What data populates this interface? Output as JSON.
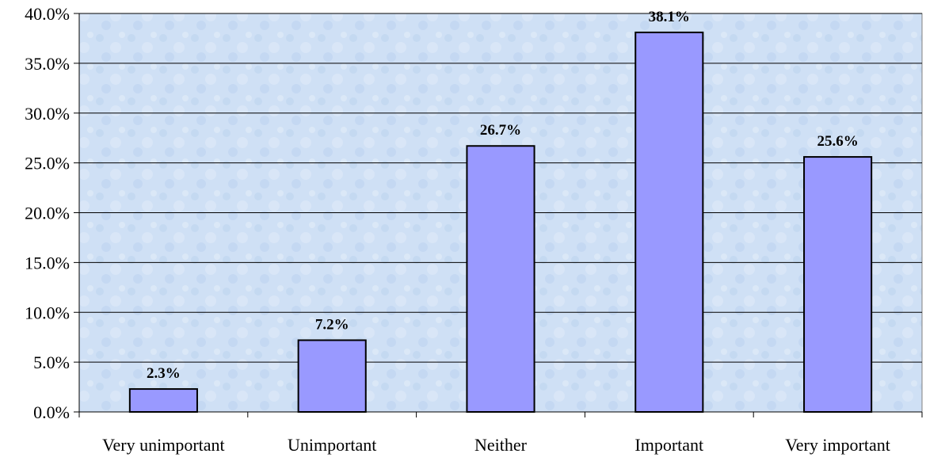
{
  "chart_data": {
    "type": "bar",
    "categories": [
      "Very unimportant",
      "Unimportant",
      "Neither",
      "Important",
      "Very important"
    ],
    "values": [
      2.3,
      7.2,
      26.7,
      38.1,
      25.6
    ],
    "data_labels": [
      "2.3%",
      "7.2%",
      "26.7%",
      "38.1%",
      "25.6%"
    ],
    "title": "",
    "xlabel": "",
    "ylabel": "",
    "ylim": [
      0,
      40
    ],
    "y_ticks": [
      0,
      5,
      10,
      15,
      20,
      25,
      30,
      35,
      40
    ],
    "y_tick_labels": [
      "0.0%",
      "5.0%",
      "10.0%",
      "15.0%",
      "20.0%",
      "25.0%",
      "30.0%",
      "35.0%",
      "40.0%"
    ],
    "grid": true,
    "legend": "none",
    "colors": {
      "bar_fill": "#9999ff",
      "bar_stroke": "#000000",
      "plot_background": "#cfe0f5",
      "gridline": "#000000"
    }
  }
}
